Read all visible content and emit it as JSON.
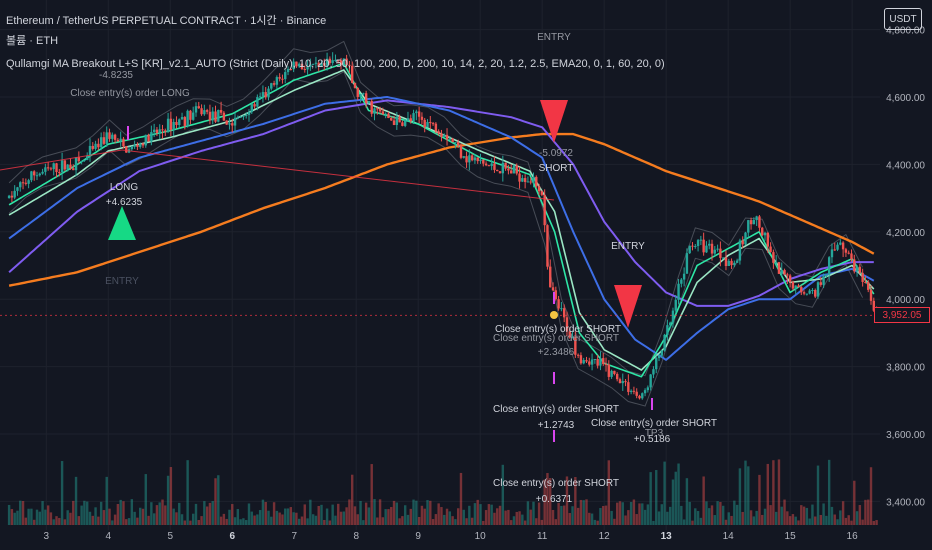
{
  "header": {
    "line1": "Ethereum / TetherUS PERPETUAL CONTRACT · 1시간 · Binance",
    "line2": "볼륨 · ETH",
    "line3": "Qullam\u001fgi MA Breakout L+S [KR]_v2.1_AUTO (Strict (Daily), 10, 20, 50, 100, 200, D, 200, 10, 14, 2, 20, 1.2, 2.5, EMA20, 0, 1, 60, 20, 0)",
    "currency": "USDT",
    "last_price": "3,952.05"
  },
  "colors": {
    "background": "#131722",
    "up_candle": "#26a69a",
    "down_candle": "#ef5350",
    "ema_fast": "#2ee6a6",
    "ema_mid": "#9be6c4",
    "ma_blue": "#3d6ee6",
    "ma_purple": "#7f5cf0",
    "ma_orange": "#f57c1f",
    "signal_long": "#16d985",
    "signal_short": "#f23645",
    "close_marker": "#d946ef",
    "last_price": "#f23645"
  },
  "chart_data": {
    "type": "candlestick",
    "title": "Ethereum / TetherUS PERPETUAL CONTRACT · 1시간 · Binance",
    "x_ticks": [
      "3",
      "4",
      "5",
      "6",
      "7",
      "8",
      "9",
      "10",
      "11",
      "12",
      "13",
      "14",
      "15",
      "16"
    ],
    "bold_ticks": [
      "6",
      "13"
    ],
    "y_ticks": [
      "3,400.00",
      "3,600.00",
      "3,800.00",
      "4,000.00",
      "4,200.00",
      "4,400.00",
      "4,600.00",
      "4,800.00"
    ],
    "y_range": [
      3330,
      4870
    ],
    "x_range": [
      2.35,
      16.45
    ],
    "path_x": [
      2.4,
      2.8,
      3.2,
      3.6,
      4.0,
      4.3,
      4.6,
      5.0,
      5.5,
      6.0,
      6.5,
      7.0,
      7.4,
      7.8,
      8.0,
      8.3,
      8.7,
      9.0,
      9.4,
      9.8,
      10.2,
      10.5,
      10.8,
      11.0,
      11.1,
      11.3,
      11.6,
      12.0,
      12.4,
      12.6,
      12.9,
      13.1,
      13.4,
      13.8,
      14.1,
      14.4,
      14.8,
      15.1,
      15.4,
      15.8,
      16.1,
      16.4
    ],
    "path_y": [
      4300,
      4370,
      4390,
      4410,
      4490,
      4440,
      4470,
      4520,
      4560,
      4520,
      4600,
      4700,
      4680,
      4720,
      4610,
      4560,
      4520,
      4540,
      4500,
      4420,
      4390,
      4380,
      4360,
      4320,
      4040,
      3960,
      3830,
      3800,
      3740,
      3700,
      3840,
      3950,
      4170,
      4150,
      4100,
      4260,
      4080,
      4030,
      4020,
      4180,
      4080,
      3950
    ],
    "ema_fast": {
      "x": [
        2.4,
        3.5,
        4.0,
        5.0,
        6.0,
        7.0,
        7.8,
        8.2,
        9.0,
        10.0,
        10.8,
        11.2,
        11.6,
        12.0,
        12.6,
        13.0,
        13.5,
        14.0,
        14.5,
        15.0,
        15.5,
        16.0,
        16.4
      ],
      "y": [
        4280,
        4400,
        4460,
        4500,
        4550,
        4650,
        4700,
        4560,
        4520,
        4420,
        4370,
        4200,
        3900,
        3810,
        3770,
        3890,
        4100,
        4150,
        4200,
        4020,
        4080,
        4120,
        4000
      ]
    },
    "ema_mid": {
      "x": [
        2.4,
        3.5,
        4.0,
        5.0,
        6.0,
        7.0,
        7.8,
        8.2,
        9.0,
        10.0,
        10.8,
        11.2,
        11.6,
        12.0,
        12.6,
        13.0,
        13.5,
        14.0,
        14.5,
        15.0,
        15.5,
        16.0,
        16.4
      ],
      "y": [
        4250,
        4370,
        4440,
        4480,
        4530,
        4620,
        4680,
        4580,
        4520,
        4440,
        4380,
        4260,
        3960,
        3850,
        3790,
        3860,
        4050,
        4130,
        4180,
        4050,
        4060,
        4100,
        4020
      ]
    },
    "ma_blue": {
      "x": [
        2.4,
        3.5,
        4.5,
        5.5,
        6.5,
        7.5,
        8.5,
        9.5,
        10.5,
        11.0,
        11.5,
        12.0,
        12.5,
        13.0,
        13.5,
        14.0,
        14.5,
        15.0,
        15.5,
        16.0,
        16.4
      ],
      "y": [
        4180,
        4330,
        4420,
        4470,
        4520,
        4580,
        4600,
        4560,
        4480,
        4420,
        4200,
        4000,
        3880,
        3820,
        3900,
        3970,
        4000,
        4000,
        4070,
        4090,
        4050
      ]
    },
    "ma_purple": {
      "x": [
        2.4,
        3.5,
        4.5,
        5.5,
        6.5,
        7.5,
        8.5,
        9.5,
        10.5,
        11.0,
        11.5,
        12.0,
        12.5,
        13.0,
        13.5,
        14.0,
        14.5,
        15.0,
        15.5,
        16.0,
        16.4
      ],
      "y": [
        4080,
        4260,
        4380,
        4440,
        4490,
        4560,
        4590,
        4570,
        4540,
        4510,
        4400,
        4230,
        4110,
        4020,
        3980,
        3980,
        4010,
        4060,
        4090,
        4110,
        4110
      ]
    },
    "ma_orange": {
      "x": [
        2.4,
        3.5,
        4.5,
        5.5,
        6.5,
        7.5,
        8.5,
        9.5,
        10.5,
        11.0,
        11.5,
        12.0,
        12.5,
        13.0,
        13.5,
        14.0,
        14.5,
        15.0,
        15.5,
        16.0,
        16.4
      ],
      "y": [
        4040,
        4080,
        4140,
        4200,
        4270,
        4330,
        4400,
        4450,
        4480,
        4490,
        4490,
        4460,
        4420,
        4380,
        4350,
        4320,
        4290,
        4250,
        4210,
        4170,
        4130
      ]
    },
    "volume_range": [
      0,
      100
    ]
  },
  "annotations": {
    "long_label": "LONG",
    "long_value": "+4.6235",
    "long_neg_value": "-4.8235",
    "close_long": "Close entry(s) order LONG",
    "entry_left": "ENTRY",
    "short_value_top": "-5.0972",
    "short_label": "SHORT",
    "entry_top": "ENTRY",
    "entry_mid": "ENTRY",
    "close_short_1": "Close entry(s) order SHORT",
    "close_short_1_dup": "Close entry(s) order SHORT",
    "close_short_1_val": "+2.3486",
    "close_short_2": "Close entry(s) order SHORT",
    "close_short_2_val": "+1.2743",
    "close_short_3": "Close entry(s) order SHORT",
    "close_short_3_val": "+0.5186",
    "close_short_4": "Close entry(s) order SHORT",
    "close_short_4_val": "+0.6371",
    "tp_label": "TP3"
  }
}
